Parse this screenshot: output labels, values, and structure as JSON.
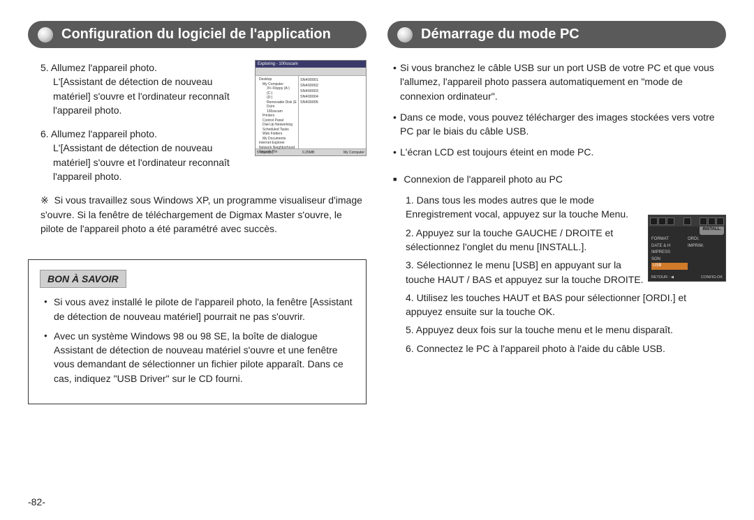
{
  "left": {
    "title": "Configuration du logiciel de l'application",
    "step5_num": "5.",
    "step5_l1": "Allumez l'appareil photo.",
    "step5_l2": "L'[Assistant de détection de nouveau matériel] s'ouvre et l'ordinateur reconnaît l'appareil photo.",
    "step6_num": "6.",
    "step6_l1": "Allumez l'appareil photo.",
    "step6_l2": "L'[Assistant de détection de nouveau matériel] s'ouvre et l'ordinateur reconnaît l'appareil photo.",
    "star": "※",
    "star_text": "Si vous travaillez sous Windows XP, un programme visualiseur d'image s'ouvre. Si la fenêtre de téléchargement de Digmax Master s'ouvre, le pilote de l'appareil photo a été paramétré avec succès.",
    "tip_title": "BON À SAVOIR",
    "tip1": "Si vous avez installé le pilote de l'appareil photo, la fenêtre [Assistant de détection de nouveau matériel] pourrait ne pas s'ouvrir.",
    "tip2": "Avec un système Windows 98 ou 98 SE, la boîte de dialogue Assistant de détection de nouveau matériel s'ouvre et une fenêtre vous demandant de sélectionner un fichier pilote apparaît. Dans ce cas, indiquez \"USB Driver\" sur le CD fourni.",
    "win_title": "Exploring - 100sscam",
    "tree_items": [
      "Desktop",
      "My Computer",
      "3½ Floppy (A:)",
      "(C:)",
      "(D:)",
      "Removable Disk (E:)",
      "Dcim",
      "100sscam",
      "Printers",
      "Control Panel",
      "Dial-Up Networking",
      "Scheduled Tasks",
      "Web Folders",
      "My Documents",
      "Internet Explorer",
      "Network Neighborhood",
      "Recycle Bin"
    ],
    "file_items": [
      "SN400001",
      "SN400002",
      "SN400003",
      "SN400004",
      "SN400005"
    ],
    "status_left": "5 object(s)",
    "status_center": "0.25MB",
    "status_right": "My Computer"
  },
  "right": {
    "title": "Démarrage du mode PC",
    "b1": "Si vous branchez le câble USB sur un port USB de votre PC et que vous l'allumez, l'appareil photo passera automatiquement en \"mode de connexion ordinateur\".",
    "b2": "Dans ce mode, vous pouvez télécharger des images stockées vers votre PC par le biais du câble USB.",
    "b3": "L'écran LCD est toujours éteint en mode PC.",
    "sq": "Connexion de l'appareil photo au PC",
    "s1": "1. Dans tous les modes autres que le mode Enregistrement vocal, appuyez sur la touche Menu.",
    "s2": "2. Appuyez sur la touche GAUCHE / DROITE et sélectionnez l'onglet du menu [INSTALL.].",
    "s3": "3. Sélectionnez le menu [USB] en appuyant sur la touche HAUT / BAS et appuyez sur la touche DROITE.",
    "s4": "4. Utilisez les touches HAUT et BAS pour sélectionner [ORDI.] et appuyez ensuite sur la touche OK.",
    "s5": "5. Appuyez deux fois sur la touche menu et le menu disparaît.",
    "s6": "6. Connectez le PC à l'appareil photo à l'aide du câble USB.",
    "cam_tab": "INSTALL.",
    "cam_rows": [
      {
        "c1": "FORMAT",
        "c2": "ORDI."
      },
      {
        "c1": "DATE & H",
        "c2": "IMPRIM."
      },
      {
        "c1": "IMPRESS",
        "c2": ""
      },
      {
        "c1": "SON",
        "c2": ""
      },
      {
        "c1": "USB",
        "c2": ""
      }
    ],
    "cam_footer_l": "RETOUR : ◀",
    "cam_footer_r": "CONFIG:OK"
  },
  "page_number": "-82-"
}
